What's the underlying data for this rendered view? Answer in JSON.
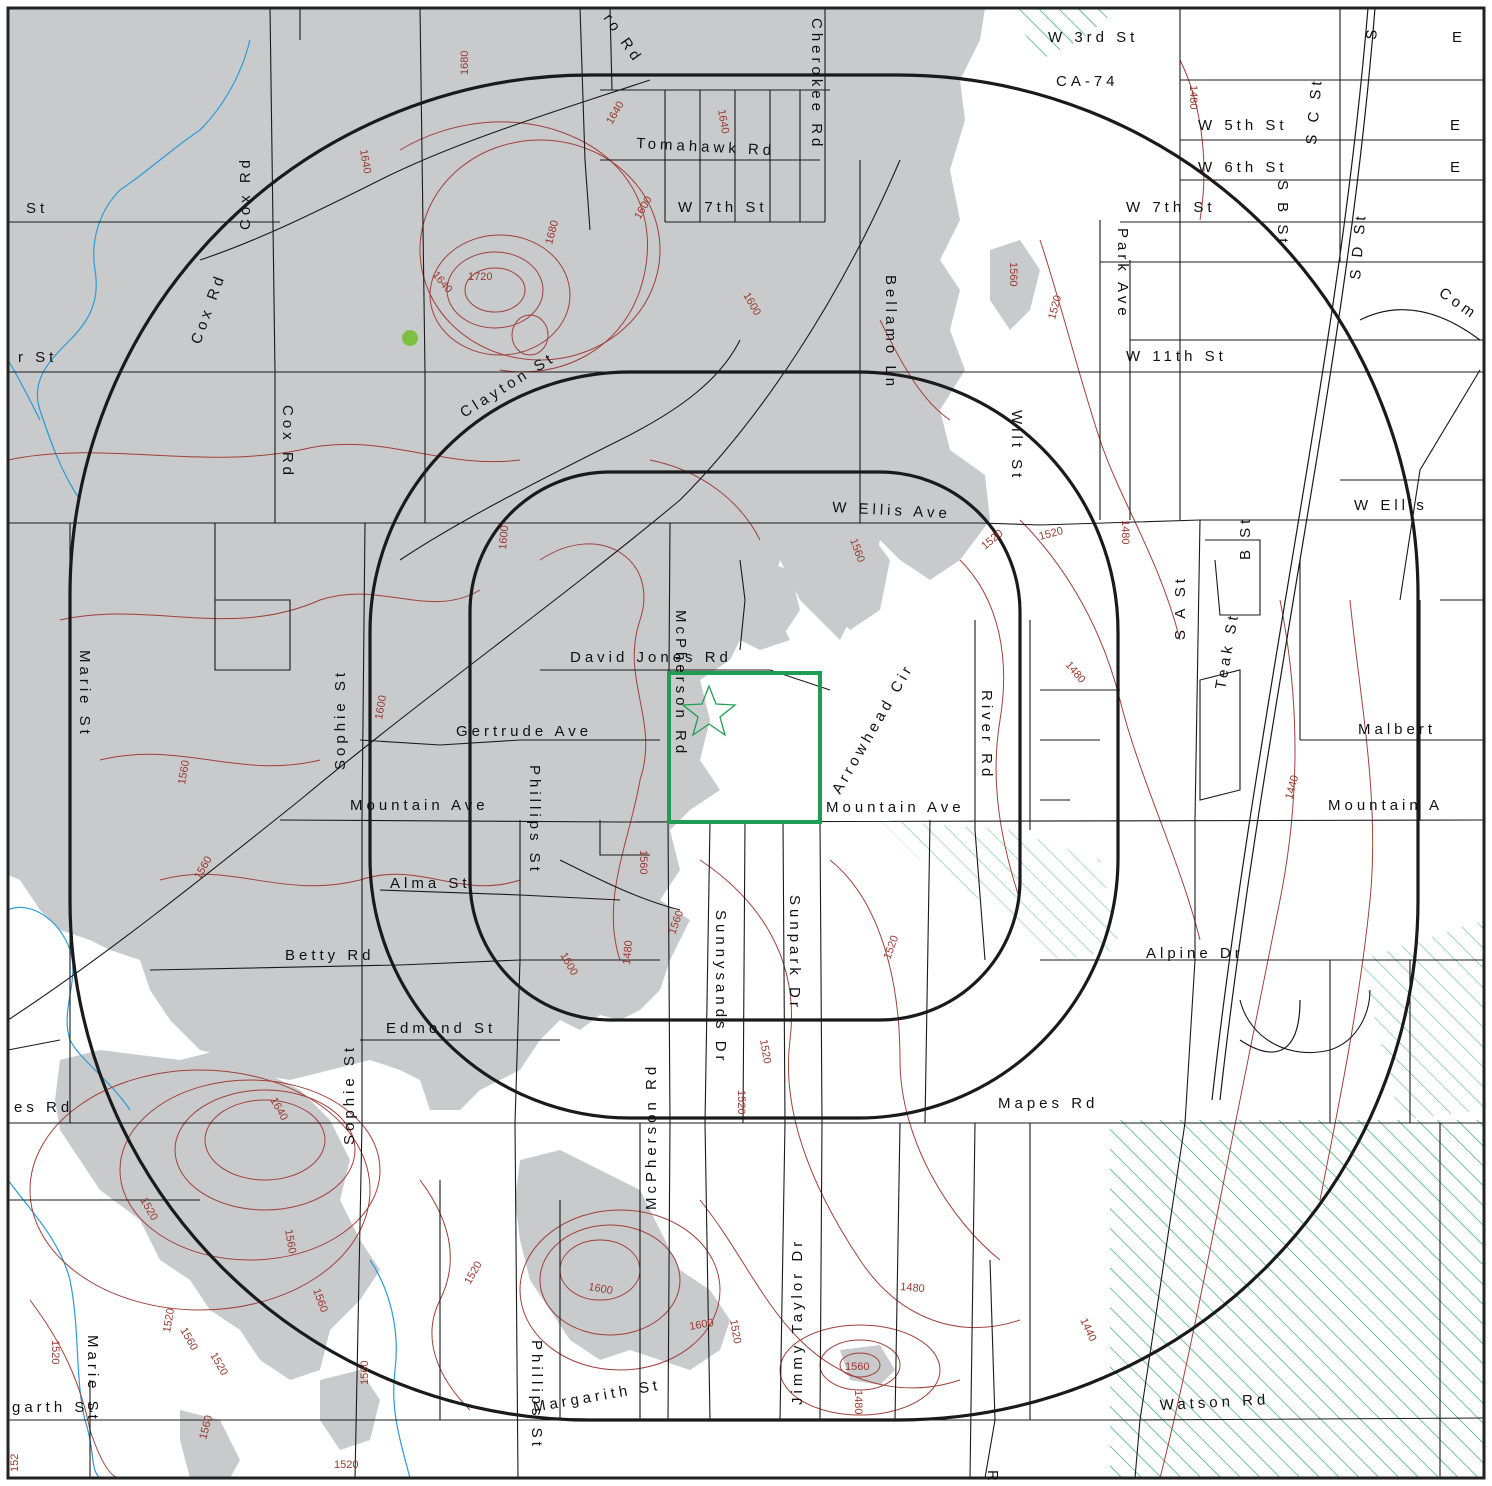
{
  "colors": {
    "terrain": "#c9cacc",
    "contour": "#a0413a",
    "water": "#2b9bd6",
    "road": "#1a1a1a",
    "ring": "#1a1a1a",
    "site": "#1f9d55",
    "hatch": "#27a36a",
    "frame": "#222222"
  },
  "icons": {
    "site_marker": "star-icon",
    "point_marker": "dot-icon"
  },
  "streets": [
    {
      "id": "w3rd",
      "label": "W 3rd St"
    },
    {
      "id": "ca74",
      "label": "CA-74"
    },
    {
      "id": "e1",
      "label": "E"
    },
    {
      "id": "tomahawk",
      "label": "Tomahawk Rd"
    },
    {
      "id": "w5th",
      "label": "W 5th St"
    },
    {
      "id": "e2",
      "label": "E"
    },
    {
      "id": "w6th",
      "label": "W 6th St"
    },
    {
      "id": "e3",
      "label": "E"
    },
    {
      "id": "w7th-a",
      "label": "W 7th St"
    },
    {
      "id": "w7th-b",
      "label": "W 7th St"
    },
    {
      "id": "st-left",
      "label": "St"
    },
    {
      "id": "cox1",
      "label": "Cox Rd"
    },
    {
      "id": "cox2",
      "label": "Cox Rd"
    },
    {
      "id": "cox3",
      "label": "Cox Rd"
    },
    {
      "id": "rd-top",
      "label": "Rd"
    },
    {
      "id": "cherokee",
      "label": "Cherokee Rd"
    },
    {
      "id": "ro-rd",
      "label": "ro Rd"
    },
    {
      "id": "r-st",
      "label": "r St"
    },
    {
      "id": "clayton",
      "label": "Clayton St"
    },
    {
      "id": "bellamo",
      "label": "Bellamo Ln"
    },
    {
      "id": "park",
      "label": "Park Ave"
    },
    {
      "id": "w11th",
      "label": "W 11th St"
    },
    {
      "id": "s-st-1",
      "label": "S B St"
    },
    {
      "id": "s-c-st",
      "label": "S C St"
    },
    {
      "id": "s-d-st",
      "label": "S D St"
    },
    {
      "id": "com",
      "label": "Com"
    },
    {
      "id": "s-edge",
      "label": "S"
    },
    {
      "id": "wells-a",
      "label": "W Ellis Ave"
    },
    {
      "id": "wells-b",
      "label": "W Ellis"
    },
    {
      "id": "b-st",
      "label": "B St"
    },
    {
      "id": "s-a-st",
      "label": "S A St"
    },
    {
      "id": "teak",
      "label": "Teak St"
    },
    {
      "id": "malbert",
      "label": "Malbert"
    },
    {
      "id": "mountain-right",
      "label": "Mountain A"
    },
    {
      "id": "mountain-mid",
      "label": "Mountain Ave"
    },
    {
      "id": "mountain-left",
      "label": "Mountain Ave"
    },
    {
      "id": "marie1",
      "label": "Marie St"
    },
    {
      "id": "sophie1",
      "label": "Sophie St"
    },
    {
      "id": "david",
      "label": "David Jones Rd"
    },
    {
      "id": "mcpherson1",
      "label": "McPherson Rd"
    },
    {
      "id": "gertrude",
      "label": "Gertrude Ave"
    },
    {
      "id": "phillips1",
      "label": "Phillips St"
    },
    {
      "id": "arrowhead",
      "label": "Arrowhead Cir"
    },
    {
      "id": "river",
      "label": "River Rd"
    },
    {
      "id": "wilt",
      "label": "Wilt St"
    },
    {
      "id": "alma",
      "label": "Alma St"
    },
    {
      "id": "betty",
      "label": "Betty Rd"
    },
    {
      "id": "edmond",
      "label": "Edmond St"
    },
    {
      "id": "sunnysands",
      "label": "Sunnysands Dr"
    },
    {
      "id": "sunpark",
      "label": "Sunpark Dr"
    },
    {
      "id": "alpine",
      "label": "Alpine Dr"
    },
    {
      "id": "mapes",
      "label": "Mapes Rd"
    },
    {
      "id": "es-rd",
      "label": "es Rd"
    },
    {
      "id": "sophie2",
      "label": "Sophie St"
    },
    {
      "id": "mcpherson2",
      "label": "McPherson Rd"
    },
    {
      "id": "jimmy",
      "label": "Jimmy Taylor Dr"
    },
    {
      "id": "marie2",
      "label": "Marie St"
    },
    {
      "id": "phillips2",
      "label": "Phillips St"
    },
    {
      "id": "margarith",
      "label": "Margarith St"
    },
    {
      "id": "garth",
      "label": "garth St"
    },
    {
      "id": "watson",
      "label": "Watson Rd"
    },
    {
      "id": "r-bottom",
      "label": "R"
    }
  ],
  "contour_labels": [
    {
      "id": "c1680",
      "label": "1680"
    },
    {
      "id": "c1640a",
      "label": "1640"
    },
    {
      "id": "c1640b",
      "label": "1640"
    },
    {
      "id": "c1720",
      "label": "1720"
    },
    {
      "id": "c1640c",
      "label": "1640"
    },
    {
      "id": "c1680b",
      "label": "1680"
    },
    {
      "id": "c1600a",
      "label": "1600"
    },
    {
      "id": "c1640d",
      "label": "1640"
    },
    {
      "id": "c1600b",
      "label": "1600"
    },
    {
      "id": "c1480a",
      "label": "1480"
    },
    {
      "id": "c1560a",
      "label": "1560"
    },
    {
      "id": "c1520a",
      "label": "1520"
    },
    {
      "id": "c1520b",
      "label": "1520"
    },
    {
      "id": "c1480b",
      "label": "1480"
    },
    {
      "id": "c1560b",
      "label": "1560"
    },
    {
      "id": "c1520c",
      "label": "1520"
    },
    {
      "id": "c1480c",
      "label": "1480"
    },
    {
      "id": "c1440a",
      "label": "1440"
    },
    {
      "id": "c1560c",
      "label": "1560"
    },
    {
      "id": "c1600c",
      "label": "1600"
    },
    {
      "id": "c1560d",
      "label": "1560"
    },
    {
      "id": "c1560e",
      "label": "1560"
    },
    {
      "id": "c1600d",
      "label": "1600"
    },
    {
      "id": "c1560f",
      "label": "1560"
    },
    {
      "id": "c1480d",
      "label": "1480"
    },
    {
      "id": "c1520d",
      "label": "1520"
    },
    {
      "id": "c1520e",
      "label": "1520"
    },
    {
      "id": "c1600e",
      "label": "1600"
    },
    {
      "id": "c1640e",
      "label": "1640"
    },
    {
      "id": "c1560g",
      "label": "1560"
    },
    {
      "id": "c1520f",
      "label": "1520"
    },
    {
      "id": "c1560h",
      "label": "1560"
    },
    {
      "id": "c1480e",
      "label": "1480"
    },
    {
      "id": "c1440b",
      "label": "1440"
    },
    {
      "id": "c1560i",
      "label": "1560"
    },
    {
      "id": "c1520g",
      "label": "1520"
    },
    {
      "id": "c1520h",
      "label": "1520"
    },
    {
      "id": "c1520i",
      "label": "1520"
    },
    {
      "id": "c1560j",
      "label": "1560"
    },
    {
      "id": "c1520j",
      "label": "1520"
    },
    {
      "id": "c1560k",
      "label": "1560"
    },
    {
      "id": "c1520k",
      "label": "1520"
    },
    {
      "id": "c1600f",
      "label": "1600"
    },
    {
      "id": "c1600g",
      "label": "1600"
    },
    {
      "id": "c1560l",
      "label": "1560"
    },
    {
      "id": "c1480f",
      "label": "1480"
    },
    {
      "id": "c1520l",
      "label": "1520"
    },
    {
      "id": "c1520m",
      "label": "1520"
    },
    {
      "id": "c152",
      "label": "152"
    }
  ]
}
